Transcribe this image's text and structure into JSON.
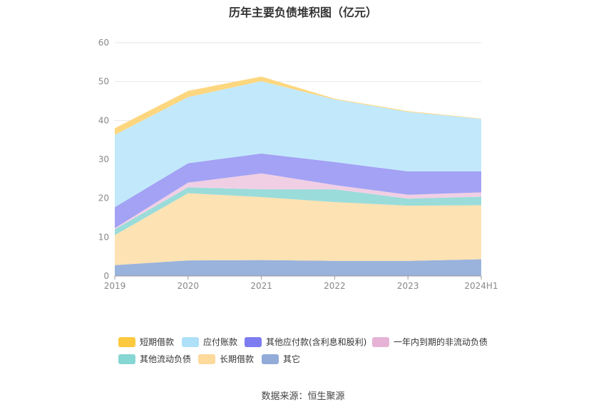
{
  "chart_data": {
    "type": "area",
    "stacked": true,
    "title": "历年主要负债堆积图（亿元）",
    "categories": [
      "2019",
      "2020",
      "2021",
      "2022",
      "2023",
      "2024H1"
    ],
    "y_ticks": [
      "0",
      "10",
      "20",
      "30",
      "40",
      "50",
      "60"
    ],
    "ylim": [
      0,
      60
    ],
    "grid": true,
    "legend_position": "bottom",
    "series": [
      {
        "name": "其它",
        "color": "#9ab3dd",
        "values": [
          2.8,
          4.0,
          4.1,
          3.9,
          3.9,
          4.3
        ]
      },
      {
        "name": "长期借款",
        "color": "#fde2b3",
        "values": [
          7.7,
          17.3,
          16.2,
          15.1,
          14.2,
          13.9
        ]
      },
      {
        "name": "其他流动负债",
        "color": "#9adcda",
        "values": [
          1.5,
          1.5,
          2.0,
          3.3,
          1.8,
          2.2
        ]
      },
      {
        "name": "一年内到期的非流动负债",
        "color": "#f0cfe4",
        "values": [
          0.3,
          1.2,
          4.1,
          1.1,
          1.0,
          1.1
        ]
      },
      {
        "name": "其他应付款(含利息和股利)",
        "color": "#a3a2f5",
        "values": [
          5.4,
          5.0,
          5.1,
          5.9,
          6.0,
          5.4
        ]
      },
      {
        "name": "应付账款",
        "color": "#c2e9fb",
        "values": [
          18.6,
          17.0,
          18.6,
          16.1,
          15.3,
          13.5
        ]
      },
      {
        "name": "短期借款",
        "color": "#fdd77f",
        "values": [
          1.7,
          1.6,
          1.2,
          0.2,
          0.2,
          0.1
        ]
      }
    ],
    "legend_order": [
      "短期借款",
      "应付账款",
      "其他应付款(含利息和股利)",
      "一年内到期的非流动负债",
      "其他流动负债",
      "长期借款",
      "其它"
    ],
    "legend_swatch_colors": {
      "短期借款": "#fcc93f",
      "应付账款": "#aee0f8",
      "其他应付款(含利息和股利)": "#7d7cf1",
      "一年内到期的非流动负债": "#e6b3d6",
      "其他流动负债": "#86d6d3",
      "长期借款": "#fdd99c",
      "其它": "#92abd8"
    }
  },
  "source": "数据来源：恒生聚源"
}
